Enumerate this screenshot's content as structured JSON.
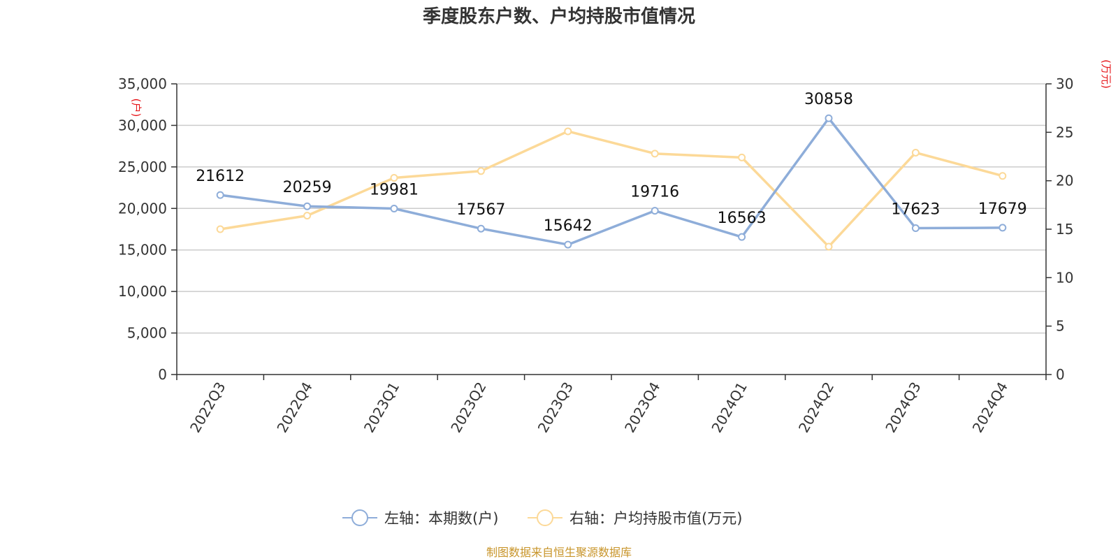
{
  "chart_data": {
    "type": "line",
    "title": "季度股东户数、户均持股市值情况",
    "categories": [
      "2022Q3",
      "2022Q4",
      "2023Q1",
      "2023Q2",
      "2023Q3",
      "2023Q4",
      "2024Q1",
      "2024Q2",
      "2024Q3",
      "2024Q4"
    ],
    "y_left": {
      "unit": "(户)",
      "range": [
        0,
        35000
      ],
      "ticks": [
        "0",
        "5,000",
        "10,000",
        "15,000",
        "20,000",
        "25,000",
        "30,000",
        "35,000"
      ]
    },
    "y_right": {
      "unit": "(万元)",
      "range": [
        0,
        30
      ],
      "ticks": [
        "0",
        "5",
        "10",
        "15",
        "20",
        "25",
        "30"
      ]
    },
    "grid": true,
    "legend_position": "bottom-center",
    "series": [
      {
        "name": "左轴：本期数(户)",
        "axis": "left",
        "color": "#8eadd9",
        "values": [
          21612,
          20259,
          19981,
          17567,
          15642,
          19716,
          16563,
          30858,
          17623,
          17679
        ],
        "labels": [
          "21612",
          "20259",
          "19981",
          "17567",
          "15642",
          "19716",
          "16563",
          "30858",
          "17623",
          "17679"
        ]
      },
      {
        "name": "右轴：户均持股市值(万元)",
        "axis": "right",
        "color": "#fcd998",
        "values": [
          15.0,
          16.4,
          20.3,
          21.0,
          25.1,
          22.8,
          22.4,
          13.2,
          22.9,
          20.5
        ]
      }
    ]
  },
  "footer": {
    "source": "制图数据来自恒生聚源数据库"
  }
}
